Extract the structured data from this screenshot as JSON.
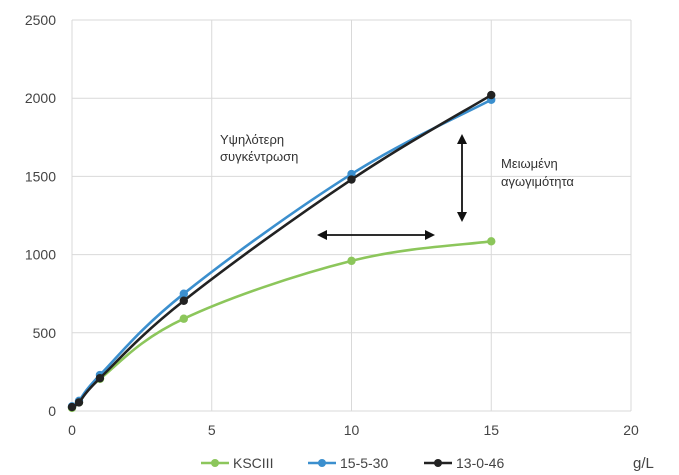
{
  "chart_data": {
    "type": "line",
    "xlabel": "g/L",
    "ylabel": "",
    "xlim": [
      0,
      20
    ],
    "ylim": [
      0,
      2500
    ],
    "x_ticks": [
      "0",
      "5",
      "10",
      "15",
      "20"
    ],
    "y_ticks": [
      "0",
      "500",
      "1000",
      "1500",
      "2000",
      "2500"
    ],
    "grid": true,
    "legend_position": "bottom",
    "series": [
      {
        "name": "KSCIII",
        "color": "#8cc65b",
        "x": [
          0,
          0.25,
          1,
          4,
          10,
          15
        ],
        "y": [
          20,
          55,
          205,
          590,
          960,
          1085
        ]
      },
      {
        "name": "15-5-30",
        "color": "#3b8fce",
        "x": [
          0,
          0.25,
          1,
          4,
          10,
          15
        ],
        "y": [
          30,
          65,
          230,
          750,
          1515,
          1990
        ]
      },
      {
        "name": "13-0-46",
        "color": "#222222",
        "x": [
          0,
          0.25,
          1,
          4,
          10,
          15
        ],
        "y": [
          25,
          55,
          210,
          705,
          1480,
          2020
        ]
      }
    ],
    "annotations": [
      {
        "lines": [
          "Υψηλότερη",
          "συγκέντρωση"
        ]
      },
      {
        "lines": [
          "Μειωμένη",
          "αγωγιμότητα"
        ]
      }
    ]
  }
}
